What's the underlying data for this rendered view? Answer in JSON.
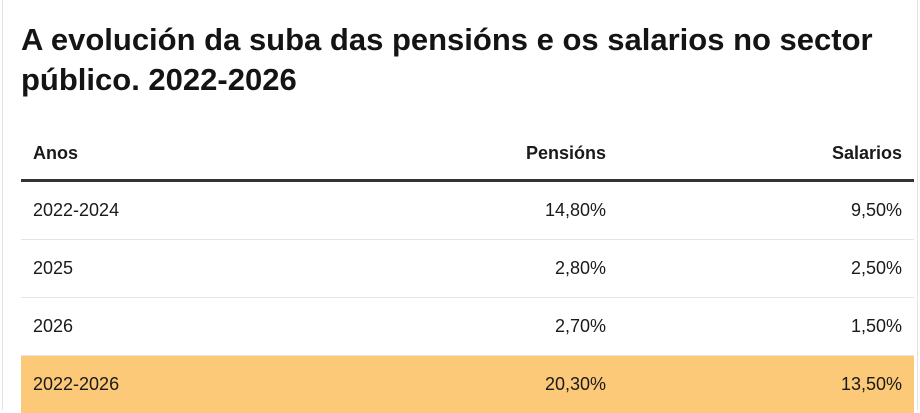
{
  "title": "A evolución da suba das pensións e os salarios no sector público. 2022-2026",
  "highlight_color": "#fbc978",
  "chart_data": {
    "type": "table",
    "title": "A evolución da suba das pensións e os salarios no sector público. 2022-2026",
    "columns": [
      "Anos",
      "Pensións",
      "Salarios"
    ],
    "rows": [
      {
        "anos": "2022-2024",
        "pensions": "14,80%",
        "salarios": "9,50%"
      },
      {
        "anos": "2025",
        "pensions": "2,80%",
        "salarios": "2,50%"
      },
      {
        "anos": "2026",
        "pensions": "2,70%",
        "salarios": "1,50%"
      },
      {
        "anos": "2022-2026",
        "pensions": "20,30%",
        "salarios": "13,50%"
      }
    ],
    "highlighted_row": "2022-2026"
  }
}
